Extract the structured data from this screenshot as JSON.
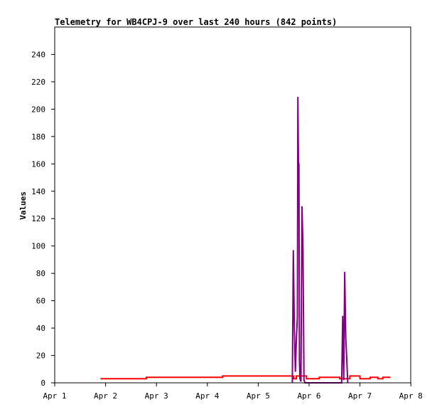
{
  "chart_data": {
    "type": "line",
    "title": "Telemetry for WB4CPJ-9 over last 240 hours (842 points)",
    "xlabel": "",
    "ylabel": "Values",
    "x_ticks": [
      "Apr 1",
      "Apr 2",
      "Apr 3",
      "Apr 4",
      "Apr 5",
      "Apr 6",
      "Apr 7",
      "Apr 8"
    ],
    "y_ticks": [
      "0",
      "20",
      "40",
      "60",
      "80",
      "100",
      "120",
      "140",
      "160",
      "180",
      "200",
      "220",
      "240"
    ],
    "xlim": [
      0,
      7
    ],
    "ylim": [
      0,
      260
    ],
    "grid": false,
    "legend": "none",
    "series": [
      {
        "color": "#ff0000",
        "x": [
          0.9,
          1.8,
          1.8,
          3.3,
          3.3,
          4.7,
          4.7,
          4.75,
          4.75,
          4.95,
          4.95,
          5.2,
          5.2,
          5.6,
          5.6,
          5.8,
          5.8,
          6.0,
          6.0,
          6.2,
          6.2,
          6.35,
          6.35,
          6.45,
          6.45,
          6.6
        ],
        "values": [
          3,
          3,
          4,
          4,
          5,
          5,
          3,
          3,
          5,
          5,
          3,
          3,
          4,
          4,
          3,
          3,
          5,
          5,
          3,
          3,
          4,
          4,
          3,
          3,
          4,
          4
        ]
      },
      {
        "color": "#800080",
        "x": [
          4.67,
          4.69,
          4.71,
          4.73,
          4.75,
          4.77,
          4.78,
          4.79,
          4.8,
          4.81,
          4.82,
          4.84,
          4.86,
          4.88,
          4.9,
          4.92,
          4.94,
          5.64,
          5.66,
          5.68,
          5.7,
          5.72,
          5.74,
          5.76
        ],
        "values": [
          0,
          97,
          41,
          8,
          32,
          48,
          209,
          161,
          160,
          17,
          3,
          1,
          129,
          97,
          2,
          0,
          0,
          0,
          49,
          2,
          81,
          33,
          17,
          0
        ]
      },
      {
        "color": "#000000",
        "x": [
          0.9,
          6.6
        ],
        "values": [
          0,
          0
        ]
      }
    ]
  }
}
